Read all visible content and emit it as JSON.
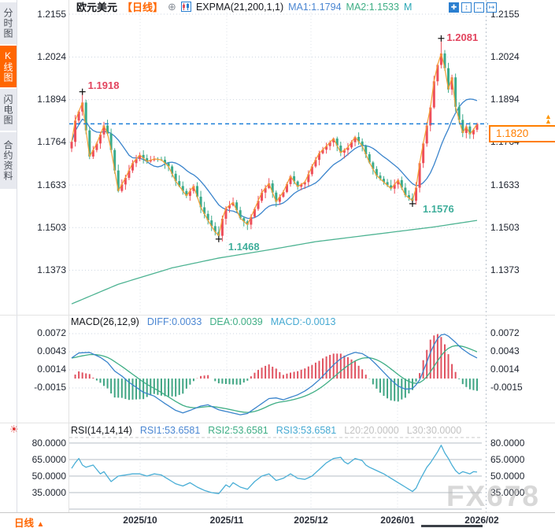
{
  "sidebar": {
    "tabs": [
      {
        "label": "分时图",
        "active": false
      },
      {
        "label": "K线图",
        "active": true
      },
      {
        "label": "闪电图",
        "active": false
      },
      {
        "label": "合约资料",
        "active": false
      }
    ]
  },
  "header": {
    "symbol": "欧元美元",
    "period_tag": "【日线】",
    "add_icon": "⊕",
    "indicator": "EXPMA(21,200,1,1)",
    "ma1_label": "MA1:1.1794",
    "ma2_label": "MA2:1.1533",
    "ma3_label": "M",
    "toolbar_icons": [
      "move-cross",
      "scale-y-axis",
      "scale-x-axis",
      "export-right"
    ]
  },
  "main_chart": {
    "y_axis_labels": [
      "1.2155",
      "1.2024",
      "1.1894",
      "1.1764",
      "1.1633",
      "1.1503",
      "1.1373"
    ],
    "current_price": "1.1820",
    "annotations": {
      "high1": "1.1918",
      "high2": "1.2081",
      "low1": "1.1468",
      "low2": "1.1576"
    }
  },
  "macd_panel": {
    "title": "MACD(26,12,9)",
    "diff_label": "DIFF:0.0033",
    "dea_label": "DEA:0.0039",
    "macd_label": "MACD:-0.0013",
    "y_axis_labels": [
      "0.0072",
      "0.0043",
      "0.0014",
      "-0.0015"
    ]
  },
  "rsi_panel": {
    "title": "RSI(14,14,14)",
    "rsi1_label": "RSI1:53.6581",
    "rsi2_label": "RSI2:53.6581",
    "rsi3_label": "RSI3:53.6581",
    "l20_label": "L20:20.0000",
    "l30_label": "L30:30.0000",
    "y_axis_labels": [
      "80.0000",
      "65.0000",
      "50.0000",
      "35.0000"
    ]
  },
  "bottom": {
    "period_label": "日线",
    "period_arrow": "▲",
    "x_axis_labels": [
      "2025/10",
      "2025/11",
      "2025/12",
      "2026/01",
      "2026/02"
    ]
  },
  "watermark": "FX678",
  "colors": {
    "accent_orange": "#ff6600",
    "candle_up": "#ee4e5a",
    "candle_down": "#3bab8b",
    "line_close": "#f5a033",
    "line_ma_blue": "#3a84cc",
    "line_ma200_green": "#4db392",
    "macd_diff": "#3a84cc",
    "macd_dea": "#3fae85",
    "hist_pos": "#e05260",
    "hist_neg": "#3fa583",
    "rsi_line": "#49aed6",
    "price_line_dashed": "#1d7fd9",
    "anno_high": "#e2445e",
    "anno_low": "#3fae9b"
  },
  "chart_data": [
    {
      "type": "candlestick",
      "title": "欧元美元 日线 (EUR/USD daily)",
      "n": 114,
      "x_categories": [
        "2025/10",
        "2025/11",
        "2025/12",
        "2026/01",
        "2026/02"
      ],
      "y_ticks": [
        1.2155,
        1.2024,
        1.1894,
        1.1764,
        1.1633,
        1.1503,
        1.1373
      ],
      "ylim": [
        1.131,
        1.218
      ],
      "last_price": 1.182,
      "close_waypoints": [
        [
          0,
          1.1765
        ],
        [
          1,
          1.183
        ],
        [
          3,
          1.1885
        ],
        [
          4,
          1.18
        ],
        [
          5,
          1.172
        ],
        [
          7,
          1.176
        ],
        [
          9,
          1.1815
        ],
        [
          10,
          1.179
        ],
        [
          11,
          1.174
        ],
        [
          13,
          1.1615
        ],
        [
          15,
          1.1655
        ],
        [
          17,
          1.17
        ],
        [
          19,
          1.1725
        ],
        [
          21,
          1.1705
        ],
        [
          23,
          1.1713
        ],
        [
          25,
          1.171
        ],
        [
          27,
          1.169
        ],
        [
          29,
          1.1645
        ],
        [
          31,
          1.1615
        ],
        [
          32,
          1.16
        ],
        [
          34,
          1.163
        ],
        [
          36,
          1.1565
        ],
        [
          38,
          1.1525
        ],
        [
          40,
          1.149
        ],
        [
          41,
          1.1478
        ],
        [
          42,
          1.153
        ],
        [
          43,
          1.1562
        ],
        [
          45,
          1.158
        ],
        [
          47,
          1.1532
        ],
        [
          49,
          1.1512
        ],
        [
          51,
          1.156
        ],
        [
          53,
          1.161
        ],
        [
          55,
          1.1638
        ],
        [
          57,
          1.1582
        ],
        [
          59,
          1.1612
        ],
        [
          61,
          1.166
        ],
        [
          63,
          1.1628
        ],
        [
          65,
          1.1642
        ],
        [
          67,
          1.169
        ],
        [
          69,
          1.173
        ],
        [
          71,
          1.1752
        ],
        [
          73,
          1.1775
        ],
        [
          75,
          1.1732
        ],
        [
          77,
          1.1748
        ],
        [
          79,
          1.178
        ],
        [
          81,
          1.1752
        ],
        [
          83,
          1.1702
        ],
        [
          85,
          1.1662
        ],
        [
          87,
          1.1642
        ],
        [
          89,
          1.1622
        ],
        [
          91,
          1.1648
        ],
        [
          93,
          1.1602
        ],
        [
          95,
          1.1585
        ],
        [
          96,
          1.1625
        ],
        [
          97,
          1.17
        ],
        [
          98,
          1.176
        ],
        [
          99,
          1.1815
        ],
        [
          100,
          1.187
        ],
        [
          101,
          1.195
        ],
        [
          102,
          1.2
        ],
        [
          103,
          1.2035
        ],
        [
          104,
          1.199
        ],
        [
          105,
          1.1925
        ],
        [
          106,
          1.1962
        ],
        [
          107,
          1.1872
        ],
        [
          108,
          1.1832
        ],
        [
          109,
          1.1792
        ],
        [
          110,
          1.1812
        ],
        [
          111,
          1.1788
        ],
        [
          112,
          1.1802
        ],
        [
          113,
          1.182
        ]
      ],
      "key_points": {
        "high1": {
          "i": 3,
          "price": 1.1918
        },
        "high2": {
          "i": 103,
          "price": 1.2081
        },
        "low1": {
          "i": 41,
          "price": 1.1468
        },
        "low2": {
          "i": 95,
          "price": 1.1576
        }
      },
      "ma200_waypoints": [
        [
          0,
          1.127
        ],
        [
          13,
          1.133
        ],
        [
          28,
          1.138
        ],
        [
          41,
          1.141
        ],
        [
          55,
          1.1435
        ],
        [
          68,
          1.146
        ],
        [
          79,
          1.1475
        ],
        [
          90,
          1.149
        ],
        [
          101,
          1.1505
        ],
        [
          113,
          1.1525
        ]
      ],
      "ma_blue_window": 13
    },
    {
      "type": "macd",
      "y_ticks": [
        0.0072,
        0.0043,
        0.0014,
        -0.0015
      ],
      "end_values": {
        "diff": 0.0033,
        "dea": 0.0039,
        "hist": -0.0013
      },
      "diff_waypoints": [
        [
          0,
          0.0033
        ],
        [
          2,
          0.0041
        ],
        [
          5,
          0.0042
        ],
        [
          8,
          0.0034
        ],
        [
          10,
          0.0026
        ],
        [
          12,
          0.0012
        ],
        [
          14,
          0.0004
        ],
        [
          16,
          -0.0006
        ],
        [
          18,
          -0.0014
        ],
        [
          20,
          -0.0022
        ],
        [
          23,
          -0.0028
        ],
        [
          26,
          -0.004
        ],
        [
          29,
          -0.0051
        ],
        [
          31,
          -0.0055
        ],
        [
          33,
          -0.0051
        ],
        [
          36,
          -0.0044
        ],
        [
          38,
          -0.0042
        ],
        [
          41,
          -0.005
        ],
        [
          44,
          -0.0054
        ],
        [
          47,
          -0.0058
        ],
        [
          49,
          -0.0056
        ],
        [
          51,
          -0.0048
        ],
        [
          53,
          -0.004
        ],
        [
          55,
          -0.0032
        ],
        [
          57,
          -0.0031
        ],
        [
          59,
          -0.0034
        ],
        [
          61,
          -0.003
        ],
        [
          63,
          -0.0026
        ],
        [
          65,
          -0.002
        ],
        [
          67,
          -0.0012
        ],
        [
          69,
          -0.0002
        ],
        [
          71,
          0.001
        ],
        [
          73,
          0.0022
        ],
        [
          75,
          0.0032
        ],
        [
          77,
          0.0038
        ],
        [
          79,
          0.0042
        ],
        [
          81,
          0.004
        ],
        [
          83,
          0.0033
        ],
        [
          85,
          0.0022
        ],
        [
          87,
          0.001
        ],
        [
          89,
          -0.0002
        ],
        [
          91,
          -0.0012
        ],
        [
          93,
          -0.0017
        ],
        [
          95,
          -0.0016
        ],
        [
          96,
          -0.001
        ],
        [
          97,
          -0.0002
        ],
        [
          98,
          0.0012
        ],
        [
          99,
          0.0026
        ],
        [
          100,
          0.0042
        ],
        [
          101,
          0.0054
        ],
        [
          102,
          0.0064
        ],
        [
          103,
          0.007
        ],
        [
          104,
          0.0071
        ],
        [
          105,
          0.0068
        ],
        [
          106,
          0.0063
        ],
        [
          107,
          0.0058
        ],
        [
          108,
          0.0052
        ],
        [
          109,
          0.0047
        ],
        [
          110,
          0.0043
        ],
        [
          111,
          0.0039
        ],
        [
          112,
          0.0036
        ],
        [
          113,
          0.0033
        ]
      ],
      "dea_ema_period": 9
    },
    {
      "type": "rsi",
      "gridlines": [
        80,
        65,
        50,
        35,
        20
      ],
      "y_tick_labels": [
        80,
        65,
        50,
        35
      ],
      "end_value": 53.6581,
      "waypoints": [
        [
          0,
          57
        ],
        [
          1,
          62
        ],
        [
          2,
          66
        ],
        [
          3,
          60
        ],
        [
          4,
          58
        ],
        [
          6,
          60
        ],
        [
          8,
          52
        ],
        [
          9,
          54
        ],
        [
          11,
          45
        ],
        [
          13,
          50
        ],
        [
          15,
          51
        ],
        [
          17,
          52
        ],
        [
          19,
          52
        ],
        [
          21,
          50
        ],
        [
          23,
          52
        ],
        [
          25,
          51
        ],
        [
          27,
          47
        ],
        [
          29,
          43
        ],
        [
          31,
          41
        ],
        [
          33,
          44
        ],
        [
          35,
          40
        ],
        [
          37,
          37
        ],
        [
          39,
          35
        ],
        [
          41,
          34
        ],
        [
          43,
          42
        ],
        [
          44,
          40
        ],
        [
          45,
          44
        ],
        [
          47,
          40
        ],
        [
          49,
          38
        ],
        [
          51,
          45
        ],
        [
          53,
          50
        ],
        [
          55,
          52
        ],
        [
          57,
          46
        ],
        [
          59,
          48
        ],
        [
          61,
          52
        ],
        [
          63,
          48
        ],
        [
          65,
          47
        ],
        [
          67,
          50
        ],
        [
          69,
          56
        ],
        [
          71,
          62
        ],
        [
          73,
          66
        ],
        [
          75,
          67
        ],
        [
          76,
          63
        ],
        [
          77,
          61
        ],
        [
          79,
          66
        ],
        [
          81,
          64
        ],
        [
          82,
          60
        ],
        [
          83,
          58
        ],
        [
          85,
          55
        ],
        [
          87,
          52
        ],
        [
          89,
          48
        ],
        [
          91,
          44
        ],
        [
          93,
          40
        ],
        [
          95,
          36
        ],
        [
          96,
          39
        ],
        [
          97,
          46
        ],
        [
          98,
          52
        ],
        [
          99,
          58
        ],
        [
          100,
          62
        ],
        [
          101,
          67
        ],
        [
          102,
          72
        ],
        [
          103,
          78
        ],
        [
          104,
          71
        ],
        [
          105,
          66
        ],
        [
          106,
          60
        ],
        [
          107,
          55
        ],
        [
          108,
          52
        ],
        [
          109,
          54
        ],
        [
          110,
          53
        ],
        [
          111,
          52
        ],
        [
          112,
          54
        ],
        [
          113,
          53.66
        ]
      ]
    }
  ]
}
